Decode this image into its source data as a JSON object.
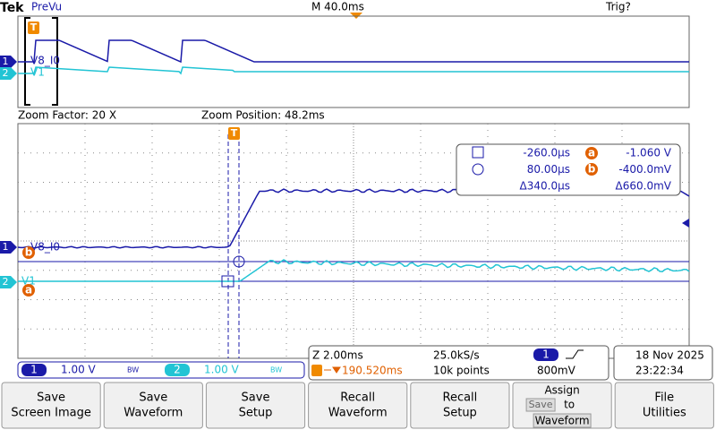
{
  "header": {
    "brand": "Tek",
    "mode": "PreVu",
    "timebase": "M 40.0ms",
    "trigger_status": "Trig?"
  },
  "trigger_marker": "T",
  "channels": [
    {
      "number": "1",
      "label": "V8_I0",
      "scale": "1.00 V",
      "bandwidth": "BW"
    },
    {
      "number": "2",
      "label": "V1",
      "scale": "1.00 V",
      "bandwidth": "BW"
    }
  ],
  "zoom": {
    "factor": "Zoom Factor: 20 X",
    "position": "Zoom Position: 48.2ms"
  },
  "cursors": {
    "a": "a",
    "b": "b",
    "rows": [
      [
        "-260.0µs",
        "-1.060 V"
      ],
      [
        "80.00µs",
        "-400.0mV"
      ],
      [
        "Δ340.0µs",
        "Δ660.0mV"
      ]
    ]
  },
  "acquisition": {
    "zoom_scale": "Z 2.00ms",
    "trigger_position": "190.520ms",
    "sample_rate": "25.0kS/s",
    "record_length": "10k points",
    "trigger_level": "800mV",
    "date": "18 Nov 2025",
    "time": "23:22:34"
  },
  "menu": [
    [
      "Save",
      "Screen Image"
    ],
    [
      "Save",
      "Waveform"
    ],
    [
      "Save",
      "Setup"
    ],
    [
      "Recall",
      "Waveform"
    ],
    [
      "Recall",
      "Setup"
    ],
    [
      "Assign",
      "Save",
      "to",
      "Waveform"
    ],
    [
      "File",
      "Utilities"
    ]
  ]
}
